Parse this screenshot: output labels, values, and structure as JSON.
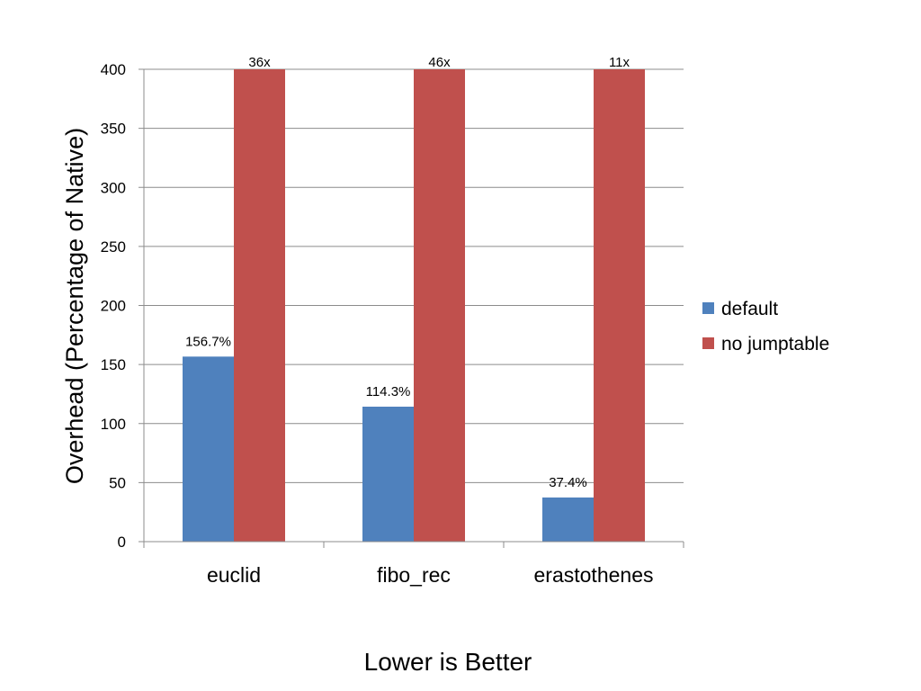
{
  "chart_data": {
    "type": "bar",
    "categories": [
      "euclid",
      "fibo_rec",
      "erastothenes"
    ],
    "series": [
      {
        "name": "default",
        "color": "#4F81BD",
        "values": [
          156.7,
          114.3,
          37.4
        ],
        "labels": [
          "156.7%",
          "114.3%",
          "37.4%"
        ]
      },
      {
        "name": "no jumptable",
        "color": "#C0504D",
        "values": [
          400,
          400,
          400
        ],
        "labels": [
          "36x",
          "46x",
          "11x"
        ]
      }
    ],
    "ylabel": "Overhead (Percentage of Native)",
    "xlabel": "Lower is Better",
    "ylim": [
      0,
      400
    ],
    "yticks": [
      0,
      50,
      100,
      150,
      200,
      250,
      300,
      350,
      400
    ],
    "grid": true,
    "legend_position": "right"
  }
}
